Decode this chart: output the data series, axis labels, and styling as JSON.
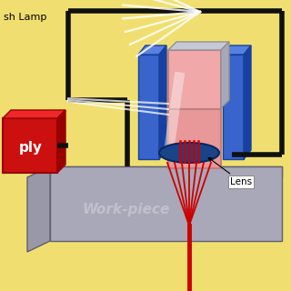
{
  "bg_color": "#f0df70",
  "work_piece_text": "Work-piece",
  "lens_text": "Lens",
  "flash_lamp_text": "sh Lamp",
  "power_supply_text": "ply",
  "table_top_color": "#b0b0bc",
  "table_side_color": "#9898a8",
  "table_face_color": "#a8a8b8",
  "laser_upper_color": "#f0a8a8",
  "laser_lower_color": "#e89898",
  "laser_top_color": "#c8c8d4",
  "laser_top_side_color": "#a8a8b8",
  "blue_block_front": "#3864cc",
  "blue_block_top": "#5880e0",
  "blue_block_side": "#1840a0",
  "red_box_front": "#cc1010",
  "red_box_top": "#ee2828",
  "red_box_side": "#990000",
  "beam_color": "#cc0000",
  "lens_color": "#1a4488",
  "lens_edge": "#0a2860",
  "wire_color": "#101010",
  "white_color": "#ffffff",
  "workpiece_text_color": "#c4c4d0"
}
